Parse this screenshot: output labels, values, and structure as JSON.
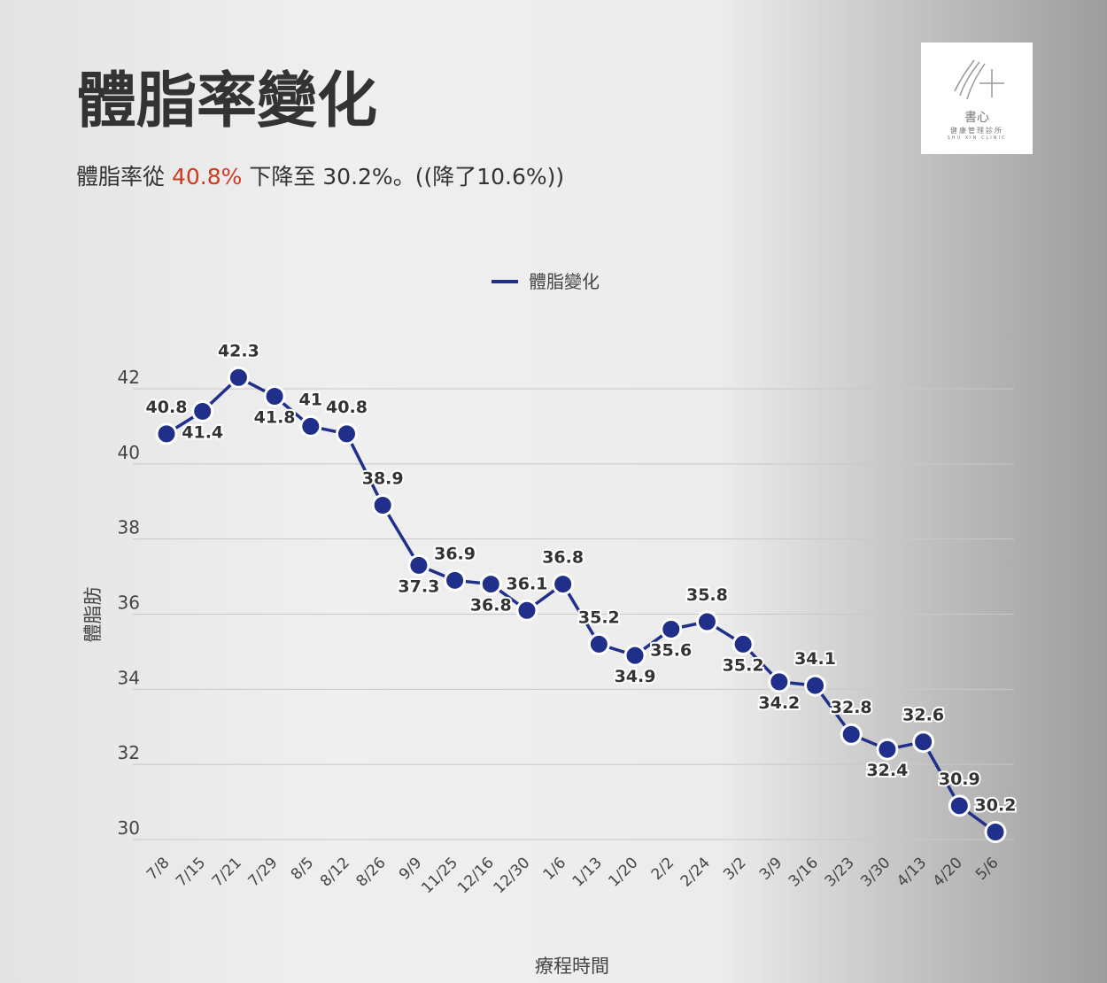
{
  "header": {
    "title": "體脂率變化",
    "subtitle_parts": [
      "體脂率從 ",
      "40.8%",
      " 下降至 30.2%。((降了10.6%))"
    ]
  },
  "logo": {
    "name": "書心",
    "subtitle": "健康管理診所",
    "english": "SHU XIN CLINIC"
  },
  "chart_data": {
    "type": "line",
    "x_label": "療程時間",
    "y_label": "體脂肪",
    "categories": [
      "7/8",
      "7/15",
      "7/21",
      "7/29",
      "8/5",
      "8/12",
      "8/26",
      "9/9",
      "11/25",
      "12/16",
      "12/30",
      "1/6",
      "1/13",
      "1/20",
      "2/2",
      "2/24",
      "3/2",
      "3/9",
      "3/16",
      "3/23",
      "3/30",
      "4/13",
      "4/20",
      "5/6"
    ],
    "series": [
      {
        "name": "體脂變化",
        "color": "#1f2f8a",
        "values": [
          40.8,
          41.4,
          42.3,
          41.8,
          41,
          40.8,
          38.9,
          37.3,
          36.9,
          36.8,
          36.1,
          36.8,
          35.2,
          34.9,
          35.6,
          35.8,
          35.2,
          34.2,
          34.1,
          32.8,
          32.4,
          32.6,
          30.9,
          30.2
        ]
      }
    ],
    "ylim": [
      30,
      42
    ],
    "yticks": [
      30,
      32,
      34,
      36,
      38,
      40,
      42
    ],
    "grid": true,
    "legend": "top"
  }
}
